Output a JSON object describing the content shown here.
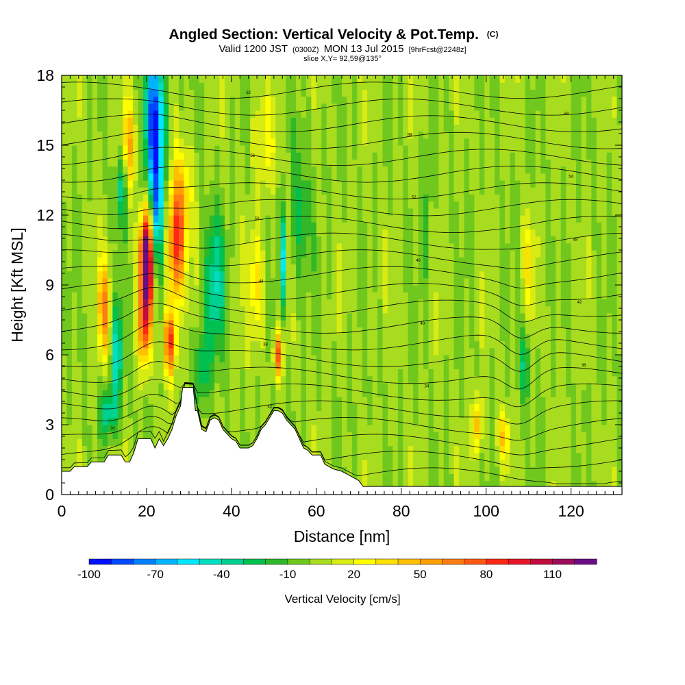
{
  "chart_data": {
    "type": "heatmap",
    "title": "Angled Section: Vertical Velocity & Pot.Temp.",
    "title_mark": "(C)",
    "subtitle_parts": [
      "Valid 1200 JST",
      "(0300Z)",
      "MON 13 Jul 2015",
      "[9hrFcst@2248z]"
    ],
    "slice_label": "slice X,Y= 92,59@135°",
    "xlabel": "Distance [nm]",
    "ylabel": "Height [Kft MSL]",
    "xlim": [
      0,
      132
    ],
    "ylim": [
      0,
      18
    ],
    "x_ticks": [
      0,
      20,
      40,
      60,
      80,
      100,
      120
    ],
    "y_ticks": [
      0,
      3,
      6,
      9,
      12,
      15,
      18
    ],
    "colorbar": {
      "label": "Vertical Velocity [cm/s]",
      "min": -100,
      "max": 120,
      "step": 10,
      "tick_values": [
        -100,
        -70,
        -40,
        -10,
        20,
        50,
        80,
        110
      ],
      "colors": [
        "#0010ff",
        "#0048ff",
        "#0080ff",
        "#00b4ff",
        "#00e8ff",
        "#00e0c0",
        "#00d090",
        "#00c050",
        "#30b828",
        "#70c81e",
        "#a8dc1e",
        "#d8ec14",
        "#ffff00",
        "#ffe000",
        "#ffc000",
        "#ffa000",
        "#ff7e14",
        "#ff5a14",
        "#ff2814",
        "#e81428",
        "#c00c3c",
        "#9c0c5c",
        "#6c0c84"
      ]
    },
    "theta_contour_labels": [
      "30",
      "32",
      "34",
      "36",
      "38",
      "40",
      "42",
      "44",
      "46",
      "48",
      "50",
      "52",
      "54",
      "56",
      "58",
      "60",
      "62"
    ],
    "terrain_profile": [
      [
        0,
        1.0
      ],
      [
        2,
        1.0
      ],
      [
        3,
        1.2
      ],
      [
        6,
        1.2
      ],
      [
        7,
        1.4
      ],
      [
        10,
        1.4
      ],
      [
        11,
        1.7
      ],
      [
        14,
        1.7
      ],
      [
        15,
        1.4
      ],
      [
        16,
        1.4
      ],
      [
        17,
        1.8
      ],
      [
        18,
        2.4
      ],
      [
        21,
        2.4
      ],
      [
        22,
        2.0
      ],
      [
        23,
        2.4
      ],
      [
        24,
        2.1
      ],
      [
        25,
        2.4
      ],
      [
        26,
        2.8
      ],
      [
        27,
        3.4
      ],
      [
        28,
        3.8
      ],
      [
        28.5,
        4.6
      ],
      [
        31,
        4.6
      ],
      [
        31.5,
        3.6
      ],
      [
        32,
        3.6
      ],
      [
        33,
        2.8
      ],
      [
        34,
        2.7
      ],
      [
        35,
        3.2
      ],
      [
        36,
        3.3
      ],
      [
        37,
        3.2
      ],
      [
        38,
        2.8
      ],
      [
        39,
        2.6
      ],
      [
        40,
        2.4
      ],
      [
        41,
        2.3
      ],
      [
        42,
        2.0
      ],
      [
        44,
        2.0
      ],
      [
        45,
        2.1
      ],
      [
        46,
        2.4
      ],
      [
        47,
        2.8
      ],
      [
        48,
        3.0
      ],
      [
        49,
        3.3
      ],
      [
        50,
        3.6
      ],
      [
        51,
        3.6
      ],
      [
        52,
        3.5
      ],
      [
        53,
        3.2
      ],
      [
        54,
        3.0
      ],
      [
        55,
        2.8
      ],
      [
        56,
        2.4
      ],
      [
        57,
        2.0
      ],
      [
        58,
        1.9
      ],
      [
        59,
        1.7
      ],
      [
        61,
        1.7
      ],
      [
        62,
        1.3
      ],
      [
        64,
        1.1
      ],
      [
        66,
        1.0
      ],
      [
        68,
        0.8
      ],
      [
        70,
        0.6
      ],
      [
        71,
        0.35
      ],
      [
        132,
        0.35
      ]
    ],
    "velocity_features": [
      {
        "x": 22,
        "y": 16,
        "v": -95,
        "sx": 2.2,
        "sy": 3.0
      },
      {
        "x": 22.5,
        "y": 12,
        "v": -60,
        "sx": 1.6,
        "sy": 2.5
      },
      {
        "x": 20,
        "y": 9.3,
        "v": 115,
        "sx": 1.5,
        "sy": 1.8
      },
      {
        "x": 20,
        "y": 11,
        "v": 75,
        "sx": 1.6,
        "sy": 1.5
      },
      {
        "x": 19.5,
        "y": 7,
        "v": 60,
        "sx": 1.5,
        "sy": 1.6
      },
      {
        "x": 25.5,
        "y": 6.5,
        "v": 85,
        "sx": 1.4,
        "sy": 1.4
      },
      {
        "x": 27,
        "y": 10.5,
        "v": 80,
        "sx": 2.0,
        "sy": 2.2
      },
      {
        "x": 28,
        "y": 13,
        "v": 40,
        "sx": 2.5,
        "sy": 2.0
      },
      {
        "x": 13,
        "y": 6,
        "v": -50,
        "sx": 1.3,
        "sy": 2.2
      },
      {
        "x": 11,
        "y": 3.5,
        "v": -40,
        "sx": 2.0,
        "sy": 1.0
      },
      {
        "x": 10,
        "y": 8,
        "v": 60,
        "sx": 1.4,
        "sy": 2.0
      },
      {
        "x": 14,
        "y": 13,
        "v": -35,
        "sx": 1.5,
        "sy": 1.5
      },
      {
        "x": 16,
        "y": 15,
        "v": 45,
        "sx": 1.5,
        "sy": 2.0
      },
      {
        "x": 36,
        "y": 9,
        "v": -40,
        "sx": 2.5,
        "sy": 3.0
      },
      {
        "x": 33,
        "y": 5.5,
        "v": -30,
        "sx": 2.0,
        "sy": 1.5
      },
      {
        "x": 46,
        "y": 9,
        "v": 30,
        "sx": 2.0,
        "sy": 2.5
      },
      {
        "x": 51,
        "y": 6,
        "v": 70,
        "sx": 1.0,
        "sy": 1.0
      },
      {
        "x": 52,
        "y": 10,
        "v": -55,
        "sx": 0.8,
        "sy": 2.0
      },
      {
        "x": 56,
        "y": 12,
        "v": -25,
        "sx": 2.5,
        "sy": 3.0
      },
      {
        "x": 48,
        "y": 15,
        "v": 20,
        "sx": 3.0,
        "sy": 2.0
      },
      {
        "x": 86,
        "y": 12,
        "v": -15,
        "sx": 1.2,
        "sy": 3.5
      },
      {
        "x": 98,
        "y": 3,
        "v": 50,
        "sx": 1.0,
        "sy": 1.2
      },
      {
        "x": 104,
        "y": 2.5,
        "v": 35,
        "sx": 1.5,
        "sy": 1.0
      },
      {
        "x": 109,
        "y": 5.5,
        "v": -30,
        "sx": 1.5,
        "sy": 1.5
      },
      {
        "x": 110,
        "y": 10,
        "v": 25,
        "sx": 1.5,
        "sy": 2.0
      }
    ]
  }
}
